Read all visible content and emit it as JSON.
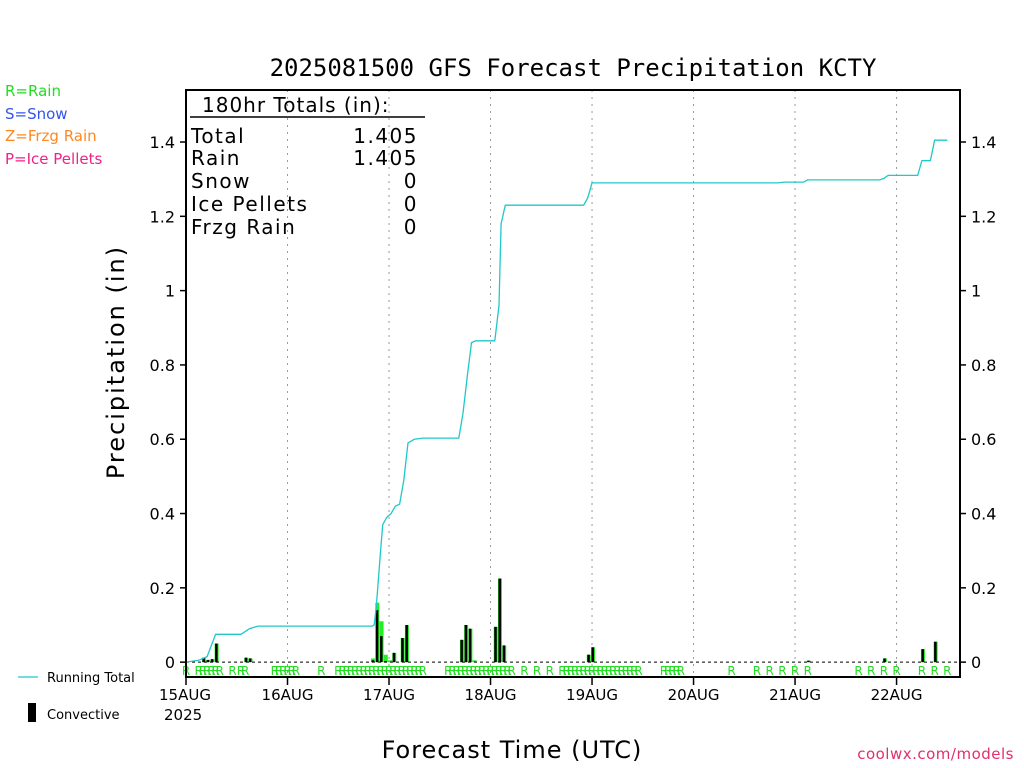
{
  "title": "2025081500 GFS Forecast Precipitation KCTY",
  "credit": "coolwx.com/models",
  "precip_type_legend": [
    {
      "label": "R=Rain",
      "color": "#22dd22"
    },
    {
      "label": "S=Snow",
      "color": "#3355ee"
    },
    {
      "label": "Z=Frzg Rain",
      "color": "#ff8822"
    },
    {
      "label": "P=Ice Pellets",
      "color": "#ee2288"
    }
  ],
  "series_legend": {
    "running_total": "Running Total",
    "convective": "Convective"
  },
  "totals_box": {
    "header": "180hr Totals (in):",
    "rows": [
      {
        "label": "Total",
        "value": "1.405"
      },
      {
        "label": "Rain",
        "value": "1.405"
      },
      {
        "label": "Snow",
        "value": "0"
      },
      {
        "label": "Ice Pellets",
        "value": "0"
      },
      {
        "label": "Frzg Rain",
        "value": "0"
      }
    ]
  },
  "colors": {
    "running_total": "#20c8c8",
    "total_bar": "#22ee22",
    "convective_bar": "#000000",
    "rain_marker": "#22dd22",
    "grid": "#999999"
  },
  "chart_data": {
    "type": "bar",
    "title": "2025081500 GFS Forecast Precipitation KCTY",
    "xlabel": "Forecast Time (UTC)",
    "ylabel": "Precipitation (in)",
    "x_unit": "forecast hour",
    "xlim": [
      0,
      183
    ],
    "ylim": [
      -0.04,
      1.54
    ],
    "y_ticks": [
      "0",
      "0.2",
      "0.4",
      "0.6",
      "0.8",
      "1",
      "1.2",
      "1.4"
    ],
    "x_ticks": [
      {
        "hour": 0,
        "label": "15AUG",
        "sublabel": "2025"
      },
      {
        "hour": 24,
        "label": "16AUG"
      },
      {
        "hour": 48,
        "label": "17AUG"
      },
      {
        "hour": 72,
        "label": "18AUG"
      },
      {
        "hour": 96,
        "label": "19AUG"
      },
      {
        "hour": 120,
        "label": "20AUG"
      },
      {
        "hour": 144,
        "label": "21AUG"
      },
      {
        "hour": 168,
        "label": "22AUG"
      }
    ],
    "grid": "vertical dotted at day boundaries",
    "running_total": [
      [
        0,
        0
      ],
      [
        3,
        0.005
      ],
      [
        5,
        0.015
      ],
      [
        7,
        0.075
      ],
      [
        13,
        0.075
      ],
      [
        15,
        0.09
      ],
      [
        17,
        0.097
      ],
      [
        44,
        0.097
      ],
      [
        44.5,
        0.1
      ],
      [
        45,
        0.15
      ],
      [
        46,
        0.3
      ],
      [
        46.5,
        0.37
      ],
      [
        47.5,
        0.39
      ],
      [
        48.5,
        0.4
      ],
      [
        49.5,
        0.42
      ],
      [
        50.5,
        0.425
      ],
      [
        51.5,
        0.49
      ],
      [
        52.5,
        0.59
      ],
      [
        54,
        0.6
      ],
      [
        56,
        0.603
      ],
      [
        64.5,
        0.603
      ],
      [
        65.5,
        0.67
      ],
      [
        66.5,
        0.77
      ],
      [
        67.5,
        0.86
      ],
      [
        68.5,
        0.865
      ],
      [
        73,
        0.865
      ],
      [
        74,
        0.96
      ],
      [
        74.5,
        1.18
      ],
      [
        75.5,
        1.23
      ],
      [
        94,
        1.23
      ],
      [
        95,
        1.25
      ],
      [
        96,
        1.29
      ],
      [
        140,
        1.29
      ],
      [
        141.5,
        1.292
      ],
      [
        146,
        1.292
      ],
      [
        147,
        1.298
      ],
      [
        164,
        1.298
      ],
      [
        165,
        1.302
      ],
      [
        166,
        1.31
      ],
      [
        173,
        1.31
      ],
      [
        174,
        1.35
      ],
      [
        176,
        1.35
      ],
      [
        177,
        1.405
      ],
      [
        180,
        1.405
      ]
    ],
    "series": [
      {
        "name": "Total",
        "bars": [
          [
            4,
            0.012
          ],
          [
            5,
            0.006
          ],
          [
            6,
            0.008
          ],
          [
            7,
            0.05
          ],
          [
            14,
            0.012
          ],
          [
            15,
            0.01
          ],
          [
            44,
            0.01
          ],
          [
            45,
            0.16
          ],
          [
            46,
            0.11
          ],
          [
            47,
            0.02
          ],
          [
            48,
            0.005
          ],
          [
            49,
            0.025
          ],
          [
            51,
            0.065
          ],
          [
            52,
            0.1
          ],
          [
            65,
            0.06
          ],
          [
            66,
            0.1
          ],
          [
            67,
            0.09
          ],
          [
            68,
            0.005
          ],
          [
            73,
            0.095
          ],
          [
            74,
            0.225
          ],
          [
            75,
            0.045
          ],
          [
            95,
            0.02
          ],
          [
            96,
            0.04
          ],
          [
            147,
            0.004
          ],
          [
            165,
            0.01
          ],
          [
            174,
            0.035
          ],
          [
            177,
            0.055
          ]
        ]
      },
      {
        "name": "Convective",
        "bars": [
          [
            4,
            0.012
          ],
          [
            5,
            0.006
          ],
          [
            6,
            0.008
          ],
          [
            7,
            0.05
          ],
          [
            14,
            0.012
          ],
          [
            15,
            0.01
          ],
          [
            44,
            0.005
          ],
          [
            45,
            0.14
          ],
          [
            46,
            0.07
          ],
          [
            47,
            0.003
          ],
          [
            49,
            0.025
          ],
          [
            51,
            0.065
          ],
          [
            52,
            0.1
          ],
          [
            65,
            0.06
          ],
          [
            66,
            0.1
          ],
          [
            67,
            0.09
          ],
          [
            73,
            0.095
          ],
          [
            74,
            0.225
          ],
          [
            75,
            0.045
          ],
          [
            95,
            0.02
          ],
          [
            96,
            0.04
          ],
          [
            147,
            0.004
          ],
          [
            165,
            0.01
          ],
          [
            174,
            0.035
          ],
          [
            177,
            0.055
          ]
        ]
      }
    ],
    "precip_type_markers": {
      "symbol": "R",
      "hours": [
        0,
        3,
        4,
        5,
        6,
        7,
        8,
        11,
        13,
        14,
        21,
        22,
        23,
        24,
        25,
        26,
        32,
        36,
        37,
        38,
        39,
        40,
        41,
        42,
        43,
        44,
        45,
        46,
        47,
        48,
        49,
        50,
        51,
        52,
        53,
        54,
        55,
        56,
        62,
        63,
        64,
        65,
        66,
        67,
        68,
        69,
        70,
        71,
        72,
        73,
        74,
        75,
        76,
        77,
        80,
        83,
        86,
        89,
        90,
        91,
        92,
        93,
        94,
        95,
        96,
        97,
        98,
        99,
        100,
        101,
        102,
        103,
        104,
        105,
        106,
        107,
        113,
        114,
        115,
        116,
        117,
        129,
        135,
        138,
        141,
        144,
        147,
        159,
        162,
        165,
        168,
        174,
        177,
        180
      ]
    }
  }
}
